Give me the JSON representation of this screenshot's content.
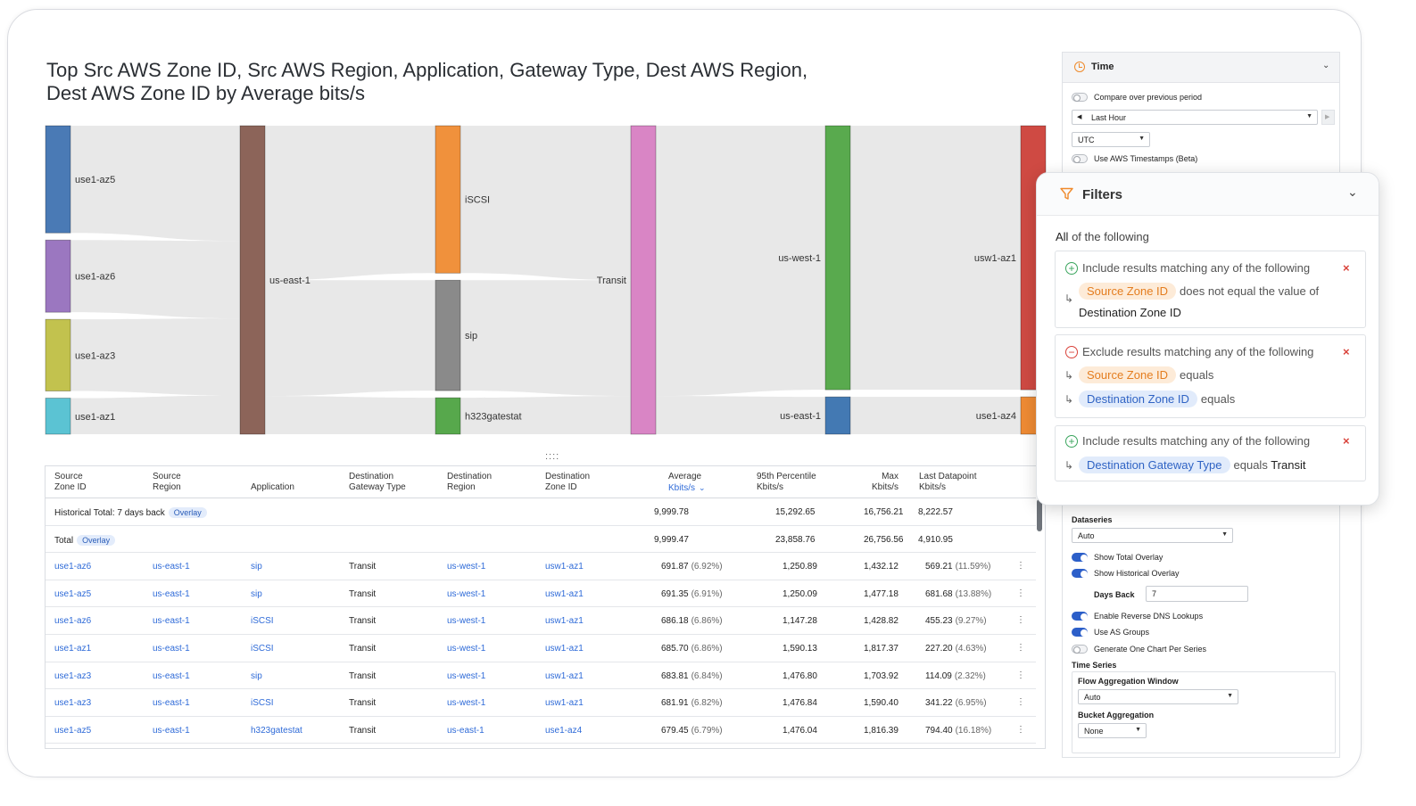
{
  "title_lines": [
    "Top Src AWS Zone ID, Src AWS Region, Application, Gateway Type, Dest AWS Region,",
    "Dest AWS Zone ID by Average bits/s"
  ],
  "drag_handle": "::::",
  "sankey": {
    "columns": [
      {
        "nodes": [
          {
            "label": "use1-az5",
            "value": 2.05,
            "color": "#4a7ab5"
          },
          {
            "label": "use1-az6",
            "value": 1.38,
            "color": "#9b77c0"
          },
          {
            "label": "use1-az3",
            "value": 1.37,
            "color": "#c2c24e"
          },
          {
            "label": "use1-az1",
            "value": 0.69,
            "color": "#5bc3d3"
          }
        ]
      },
      {
        "nodes": [
          {
            "label": "us-east-1",
            "value": 5.49,
            "color": "#8c6459"
          }
        ]
      },
      {
        "nodes": [
          {
            "label": "iSCSI",
            "value": 2.75,
            "color": "#f0913c"
          },
          {
            "label": "sip",
            "value": 2.06,
            "color": "#8a8a8a"
          },
          {
            "label": "h323gatestat",
            "value": 0.68,
            "color": "#57a84c"
          }
        ]
      },
      {
        "nodes": [
          {
            "label": "Transit",
            "value": 5.49,
            "color": "#d985c5"
          }
        ]
      },
      {
        "nodes": [
          {
            "label": "us-west-1",
            "value": 4.81,
            "color": "#59aa4e"
          },
          {
            "label": "us-east-1",
            "value": 0.68,
            "color": "#4379b3"
          }
        ]
      },
      {
        "nodes": [
          {
            "label": "usw1-az1",
            "value": 4.81,
            "color": "#cf4a43"
          },
          {
            "label": "use1-az4",
            "value": 0.68,
            "color": "#ef8b34"
          }
        ]
      }
    ]
  },
  "table": {
    "headers": [
      {
        "l1": "Source",
        "l2": "Zone ID"
      },
      {
        "l1": "Source",
        "l2": "Region"
      },
      {
        "l1": "",
        "l2": "Application"
      },
      {
        "l1": "Destination",
        "l2": "Gateway Type"
      },
      {
        "l1": "Destination",
        "l2": "Region"
      },
      {
        "l1": "Destination",
        "l2": "Zone ID"
      },
      {
        "l1": "Average",
        "l2": "Kbits/s"
      },
      {
        "l1": "95th Percentile",
        "l2": "Kbits/s"
      },
      {
        "l1": "Max",
        "l2": "Kbits/s"
      },
      {
        "l1": "Last Datapoint",
        "l2": "Kbits/s"
      }
    ],
    "historical": {
      "label": "Historical Total: 7 days back",
      "badge": "Overlay",
      "avg": "9,999.78",
      "p95": "15,292.65",
      "max": "16,756.21",
      "last": "8,222.57"
    },
    "total": {
      "label": "Total",
      "badge": "Overlay",
      "avg": "9,999.47",
      "p95": "23,858.76",
      "max": "26,756.56",
      "last": "4,910.95"
    },
    "rows": [
      {
        "zone": "use1-az6",
        "region": "us-east-1",
        "app": "sip",
        "gw": "Transit",
        "dregion": "us-west-1",
        "dzone": "usw1-az1",
        "avg": "691.87",
        "avg_pct": "(6.92%)",
        "p95": "1,250.89",
        "max": "1,432.12",
        "last": "569.21",
        "last_pct": "(11.59%)"
      },
      {
        "zone": "use1-az5",
        "region": "us-east-1",
        "app": "sip",
        "gw": "Transit",
        "dregion": "us-west-1",
        "dzone": "usw1-az1",
        "avg": "691.35",
        "avg_pct": "(6.91%)",
        "p95": "1,250.09",
        "max": "1,477.18",
        "last": "681.68",
        "last_pct": "(13.88%)"
      },
      {
        "zone": "use1-az6",
        "region": "us-east-1",
        "app": "iSCSI",
        "gw": "Transit",
        "dregion": "us-west-1",
        "dzone": "usw1-az1",
        "avg": "686.18",
        "avg_pct": "(6.86%)",
        "p95": "1,147.28",
        "max": "1,428.82",
        "last": "455.23",
        "last_pct": "(9.27%)"
      },
      {
        "zone": "use1-az1",
        "region": "us-east-1",
        "app": "iSCSI",
        "gw": "Transit",
        "dregion": "us-west-1",
        "dzone": "usw1-az1",
        "avg": "685.70",
        "avg_pct": "(6.86%)",
        "p95": "1,590.13",
        "max": "1,817.37",
        "last": "227.20",
        "last_pct": "(4.63%)"
      },
      {
        "zone": "use1-az3",
        "region": "us-east-1",
        "app": "sip",
        "gw": "Transit",
        "dregion": "us-west-1",
        "dzone": "usw1-az1",
        "avg": "683.81",
        "avg_pct": "(6.84%)",
        "p95": "1,476.80",
        "max": "1,703.92",
        "last": "114.09",
        "last_pct": "(2.32%)"
      },
      {
        "zone": "use1-az3",
        "region": "us-east-1",
        "app": "iSCSI",
        "gw": "Transit",
        "dregion": "us-west-1",
        "dzone": "usw1-az1",
        "avg": "681.91",
        "avg_pct": "(6.82%)",
        "p95": "1,476.84",
        "max": "1,590.40",
        "last": "341.22",
        "last_pct": "(6.95%)"
      },
      {
        "zone": "use1-az5",
        "region": "us-east-1",
        "app": "h323gatestat",
        "gw": "Transit",
        "dregion": "us-east-1",
        "dzone": "use1-az4",
        "avg": "679.45",
        "avg_pct": "(6.79%)",
        "p95": "1,476.04",
        "max": "1,816.39",
        "last": "794.40",
        "last_pct": "(16.18%)"
      }
    ]
  },
  "side_panel": {
    "time_title": "Time",
    "compare_label": "Compare over previous period",
    "range_value": "Last Hour",
    "tz_value": "UTC",
    "aws_ts_label": "Use AWS Timestamps (Beta)",
    "dataseries_label": "Dataseries",
    "dataseries_value": "Auto",
    "total_overlay_label": "Show Total Overlay",
    "hist_overlay_label": "Show Historical Overlay",
    "days_back_label": "Days Back",
    "days_back_value": "7",
    "dns_label": "Enable Reverse DNS Lookups",
    "as_groups_label": "Use AS Groups",
    "one_chart_label": "Generate One Chart Per Series",
    "time_series_label": "Time Series",
    "flow_agg_label": "Flow Aggregation Window",
    "flow_agg_value": "Auto",
    "bucket_agg_label": "Bucket Aggregation",
    "bucket_agg_value": "None",
    "toggles": {
      "compare": false,
      "aws_ts": false,
      "total_overlay": true,
      "hist_overlay": true,
      "dns": true,
      "as_groups": true,
      "one_chart": false
    }
  },
  "filters": {
    "title": "Filters",
    "all_prefix": "All",
    "all_suffix": "of the following",
    "groups": [
      {
        "type": "include",
        "head": "Include results matching any of the following",
        "lines": [
          {
            "field": "Source Zone ID",
            "field_color": "orange",
            "op": "does not equal the value of",
            "value2": "Destination Zone ID"
          }
        ]
      },
      {
        "type": "exclude",
        "head": "Exclude results matching any of the following",
        "lines": [
          {
            "field": "Source Zone ID",
            "field_color": "orange",
            "op": "equals"
          },
          {
            "field": "Destination Zone ID",
            "field_color": "blue",
            "op": "equals"
          }
        ]
      },
      {
        "type": "include",
        "head": "Include results matching any of the following",
        "lines": [
          {
            "field": "Destination Gateway Type",
            "field_color": "blue",
            "op": "equals",
            "value": "Transit"
          }
        ]
      }
    ]
  }
}
